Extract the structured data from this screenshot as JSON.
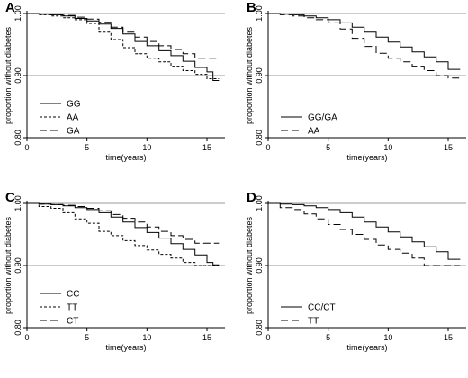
{
  "chart_data": [
    {
      "panel": "A",
      "type": "line",
      "title": "",
      "xlabel": "time(years)",
      "ylabel": "proportion without diabetes",
      "xlim": [
        0,
        16.5
      ],
      "ylim": [
        0.8,
        1.0
      ],
      "x_ticks": [
        0,
        5,
        10,
        15
      ],
      "y_ticks": [
        {
          "value": 0.8,
          "label": "0.80"
        },
        {
          "value": 0.9,
          "label": "0.90"
        },
        {
          "value": 1.0,
          "label": "1.00"
        }
      ],
      "reference_lines": [
        0.9,
        1.0
      ],
      "legend_position": "bottom-left",
      "series": [
        {
          "name": "GG",
          "dash": "solid",
          "points": [
            [
              0,
              1.0
            ],
            [
              1,
              0.999
            ],
            [
              2,
              0.998
            ],
            [
              3,
              0.996
            ],
            [
              4,
              0.992
            ],
            [
              5,
              0.988
            ],
            [
              6,
              0.983
            ],
            [
              7,
              0.976
            ],
            [
              8,
              0.967
            ],
            [
              9,
              0.955
            ],
            [
              10,
              0.948
            ],
            [
              11,
              0.94
            ],
            [
              12,
              0.932
            ],
            [
              13,
              0.923
            ],
            [
              14,
              0.913
            ],
            [
              15,
              0.906
            ],
            [
              15.5,
              0.892
            ],
            [
              16,
              0.892
            ]
          ]
        },
        {
          "name": "AA",
          "dash": "short",
          "points": [
            [
              0,
              1.0
            ],
            [
              1,
              0.998
            ],
            [
              2,
              0.996
            ],
            [
              3,
              0.993
            ],
            [
              4,
              0.99
            ],
            [
              5,
              0.984
            ],
            [
              6,
              0.97
            ],
            [
              7,
              0.958
            ],
            [
              8,
              0.945
            ],
            [
              9,
              0.935
            ],
            [
              10,
              0.928
            ],
            [
              11,
              0.922
            ],
            [
              12,
              0.915
            ],
            [
              13,
              0.908
            ],
            [
              14,
              0.902
            ],
            [
              15,
              0.895
            ],
            [
              16,
              0.895
            ]
          ]
        },
        {
          "name": "GA",
          "dash": "long",
          "points": [
            [
              0,
              1.0
            ],
            [
              1,
              0.999
            ],
            [
              2,
              0.998
            ],
            [
              3,
              0.997
            ],
            [
              4,
              0.994
            ],
            [
              5,
              0.991
            ],
            [
              6,
              0.986
            ],
            [
              7,
              0.978
            ],
            [
              8,
              0.97
            ],
            [
              9,
              0.962
            ],
            [
              10,
              0.955
            ],
            [
              11,
              0.948
            ],
            [
              12,
              0.942
            ],
            [
              13,
              0.935
            ],
            [
              14,
              0.928
            ],
            [
              15,
              0.928
            ],
            [
              16,
              0.928
            ]
          ]
        }
      ]
    },
    {
      "panel": "B",
      "type": "line",
      "title": "",
      "xlabel": "time(years)",
      "ylabel": "proportion without diabetes",
      "xlim": [
        0,
        16.5
      ],
      "ylim": [
        0.8,
        1.0
      ],
      "x_ticks": [
        0,
        5,
        10,
        15
      ],
      "y_ticks": [
        {
          "value": 0.8,
          "label": "0.80"
        },
        {
          "value": 0.9,
          "label": "0.90"
        },
        {
          "value": 1.0,
          "label": "1.00"
        }
      ],
      "reference_lines": [
        0.9,
        1.0
      ],
      "legend_position": "bottom-left",
      "series": [
        {
          "name": "GG/GA",
          "dash": "solid",
          "points": [
            [
              0,
              1.0
            ],
            [
              1,
              0.999
            ],
            [
              2,
              0.998
            ],
            [
              3,
              0.996
            ],
            [
              4,
              0.993
            ],
            [
              5,
              0.99
            ],
            [
              6,
              0.985
            ],
            [
              7,
              0.978
            ],
            [
              8,
              0.97
            ],
            [
              9,
              0.962
            ],
            [
              10,
              0.954
            ],
            [
              11,
              0.946
            ],
            [
              12,
              0.938
            ],
            [
              13,
              0.93
            ],
            [
              14,
              0.922
            ],
            [
              15,
              0.91
            ],
            [
              16,
              0.91
            ]
          ]
        },
        {
          "name": "AA",
          "dash": "long",
          "points": [
            [
              0,
              1.0
            ],
            [
              1,
              0.998
            ],
            [
              2,
              0.996
            ],
            [
              3,
              0.993
            ],
            [
              4,
              0.99
            ],
            [
              5,
              0.985
            ],
            [
              6,
              0.975
            ],
            [
              7,
              0.96
            ],
            [
              8,
              0.947
            ],
            [
              9,
              0.936
            ],
            [
              10,
              0.928
            ],
            [
              11,
              0.922
            ],
            [
              12,
              0.915
            ],
            [
              13,
              0.908
            ],
            [
              14,
              0.9
            ],
            [
              15,
              0.896
            ],
            [
              16,
              0.896
            ]
          ]
        }
      ]
    },
    {
      "panel": "C",
      "type": "line",
      "title": "",
      "xlabel": "time(years)",
      "ylabel": "proportion without diabetes",
      "xlim": [
        0,
        16.5
      ],
      "ylim": [
        0.8,
        1.0
      ],
      "x_ticks": [
        0,
        5,
        10,
        15
      ],
      "y_ticks": [
        {
          "value": 0.8,
          "label": "0.80"
        },
        {
          "value": 0.9,
          "label": "0.90"
        },
        {
          "value": 1.0,
          "label": "1.00"
        }
      ],
      "reference_lines": [
        0.9,
        1.0
      ],
      "legend_position": "bottom-left",
      "series": [
        {
          "name": "CC",
          "dash": "solid",
          "points": [
            [
              0,
              1.0
            ],
            [
              1,
              0.999
            ],
            [
              2,
              0.998
            ],
            [
              3,
              0.996
            ],
            [
              4,
              0.993
            ],
            [
              5,
              0.99
            ],
            [
              6,
              0.985
            ],
            [
              7,
              0.978
            ],
            [
              8,
              0.97
            ],
            [
              9,
              0.961
            ],
            [
              10,
              0.953
            ],
            [
              11,
              0.944
            ],
            [
              12,
              0.935
            ],
            [
              13,
              0.926
            ],
            [
              14,
              0.917
            ],
            [
              15,
              0.905
            ],
            [
              15.5,
              0.901
            ],
            [
              16,
              0.901
            ]
          ]
        },
        {
          "name": "TT",
          "dash": "short",
          "points": [
            [
              0,
              1.0
            ],
            [
              1,
              0.995
            ],
            [
              2,
              0.992
            ],
            [
              3,
              0.985
            ],
            [
              4,
              0.975
            ],
            [
              5,
              0.968
            ],
            [
              6,
              0.955
            ],
            [
              7,
              0.948
            ],
            [
              8,
              0.94
            ],
            [
              9,
              0.932
            ],
            [
              10,
              0.925
            ],
            [
              11,
              0.918
            ],
            [
              12,
              0.912
            ],
            [
              13,
              0.905
            ],
            [
              14,
              0.9
            ],
            [
              15,
              0.9
            ],
            [
              16,
              0.9
            ]
          ]
        },
        {
          "name": "CT",
          "dash": "long",
          "points": [
            [
              0,
              1.0
            ],
            [
              1,
              0.999
            ],
            [
              2,
              0.998
            ],
            [
              3,
              0.997
            ],
            [
              4,
              0.995
            ],
            [
              5,
              0.992
            ],
            [
              6,
              0.988
            ],
            [
              7,
              0.982
            ],
            [
              8,
              0.976
            ],
            [
              9,
              0.97
            ],
            [
              10,
              0.962
            ],
            [
              11,
              0.955
            ],
            [
              12,
              0.948
            ],
            [
              13,
              0.942
            ],
            [
              14,
              0.936
            ],
            [
              15,
              0.936
            ],
            [
              16,
              0.936
            ]
          ]
        }
      ]
    },
    {
      "panel": "D",
      "type": "line",
      "title": "",
      "xlabel": "time(years)",
      "ylabel": "proportion without diabetes",
      "xlim": [
        0,
        16.5
      ],
      "ylim": [
        0.8,
        1.0
      ],
      "x_ticks": [
        0,
        5,
        10,
        15
      ],
      "y_ticks": [
        {
          "value": 0.8,
          "label": "0.80"
        },
        {
          "value": 0.9,
          "label": "0.90"
        },
        {
          "value": 1.0,
          "label": "1.00"
        }
      ],
      "reference_lines": [
        0.9,
        1.0
      ],
      "legend_position": "bottom-left",
      "series": [
        {
          "name": "CC/CT",
          "dash": "solid",
          "points": [
            [
              0,
              1.0
            ],
            [
              1,
              0.999
            ],
            [
              2,
              0.998
            ],
            [
              3,
              0.996
            ],
            [
              4,
              0.993
            ],
            [
              5,
              0.99
            ],
            [
              6,
              0.985
            ],
            [
              7,
              0.978
            ],
            [
              8,
              0.97
            ],
            [
              9,
              0.962
            ],
            [
              10,
              0.954
            ],
            [
              11,
              0.946
            ],
            [
              12,
              0.938
            ],
            [
              13,
              0.93
            ],
            [
              14,
              0.922
            ],
            [
              15,
              0.91
            ],
            [
              16,
              0.91
            ]
          ]
        },
        {
          "name": "TT",
          "dash": "long",
          "points": [
            [
              0,
              1.0
            ],
            [
              1,
              0.993
            ],
            [
              2,
              0.99
            ],
            [
              3,
              0.983
            ],
            [
              4,
              0.975
            ],
            [
              5,
              0.966
            ],
            [
              6,
              0.958
            ],
            [
              7,
              0.95
            ],
            [
              8,
              0.942
            ],
            [
              9,
              0.933
            ],
            [
              10,
              0.926
            ],
            [
              11,
              0.92
            ],
            [
              12,
              0.912
            ],
            [
              13,
              0.9
            ],
            [
              14,
              0.9
            ],
            [
              15,
              0.9
            ],
            [
              16,
              0.9
            ]
          ]
        }
      ]
    }
  ]
}
